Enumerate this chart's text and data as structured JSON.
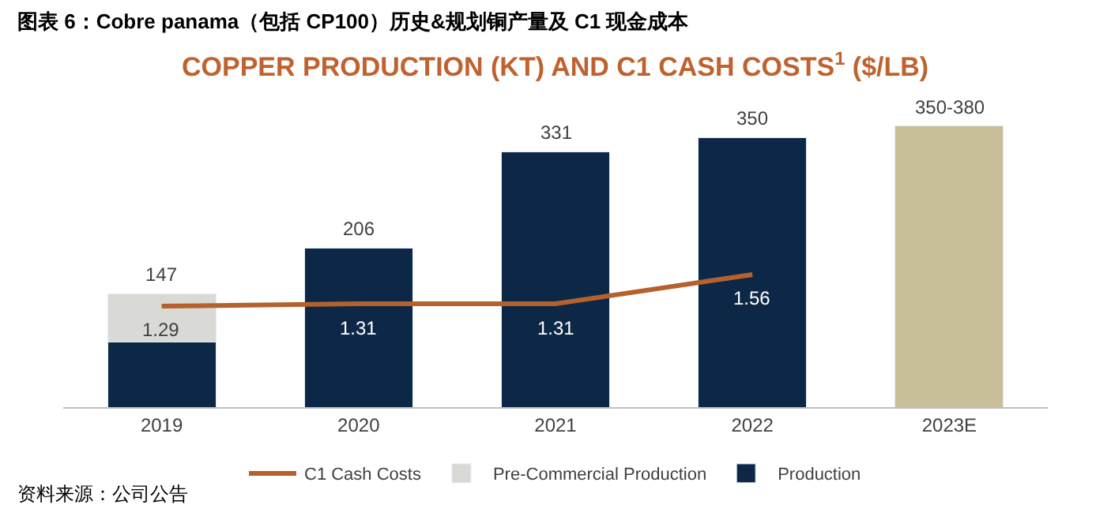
{
  "chart_data": {
    "type": "bar",
    "title": "图表 6：Cobre panama（包括 CP100）历史&规划铜产量及 C1 现金成本",
    "subtitle": "COPPER PRODUCTION (KT) AND C1 CASH COSTS$^{1}$ ($/LB)",
    "categories": [
      "2019",
      "2020",
      "2021",
      "2022",
      "2023E"
    ],
    "stacked": true,
    "series": [
      {
        "name": "Production",
        "color": "#0d2847",
        "values": [
          84,
          206,
          331,
          350,
          null
        ],
        "value_labels": [
          null,
          "206",
          "331",
          "350",
          null
        ]
      },
      {
        "name": "Pre-Commercial Production",
        "color": "#d9d9d6",
        "values": [
          63,
          null,
          null,
          null,
          null
        ]
      },
      {
        "color": "#c9be9a",
        "values": [
          null,
          null,
          null,
          null,
          365
        ],
        "value_labels": [
          null,
          null,
          null,
          null,
          "350-380"
        ]
      },
      {
        "name": "C1 Cash Costs",
        "type": "line",
        "axis": "y2",
        "color": "#b5612d",
        "values": [
          1.29,
          1.31,
          1.31,
          1.56,
          null
        ],
        "value_labels": [
          "1.29",
          "1.31",
          "1.31",
          "1.56",
          null
        ]
      }
    ],
    "totals": [
      "147",
      null,
      null,
      null,
      null
    ],
    "tick_labels": "x",
    "legend": "bottom",
    "marker": "none",
    "annotations": [
      "资料来源：公司公告"
    ]
  }
}
